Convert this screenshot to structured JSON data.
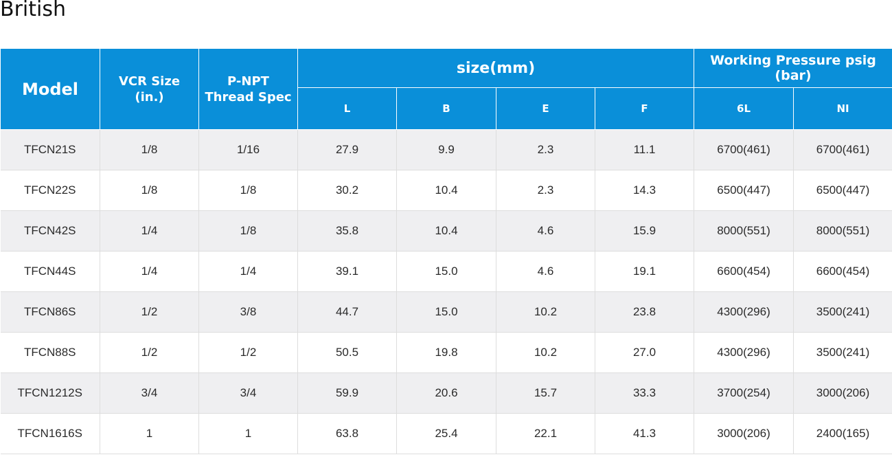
{
  "title": "British",
  "headers": {
    "model": "Model",
    "vcr_size": [
      "VCR Size",
      "(in.)"
    ],
    "thread_spec": [
      "P-NPT",
      "Thread Spec"
    ],
    "size_group": "size(mm)",
    "pressure_group": "Working Pressure psig (bar)",
    "size_cols": [
      "L",
      "B",
      "E",
      "F"
    ],
    "pressure_cols": [
      "6L",
      "NI"
    ]
  },
  "colors": {
    "header_bg": "#0a8fd9",
    "row_alt_bg": "#efeff1"
  },
  "rows": [
    [
      "TFCN21S",
      "1/8",
      "1/16",
      "27.9",
      "9.9",
      "2.3",
      "11.1",
      "6700(461)",
      "6700(461)"
    ],
    [
      "TFCN22S",
      "1/8",
      "1/8",
      "30.2",
      "10.4",
      "2.3",
      "14.3",
      "6500(447)",
      "6500(447)"
    ],
    [
      "TFCN42S",
      "1/4",
      "1/8",
      "35.8",
      "10.4",
      "4.6",
      "15.9",
      "8000(551)",
      "8000(551)"
    ],
    [
      "TFCN44S",
      "1/4",
      "1/4",
      "39.1",
      "15.0",
      "4.6",
      "19.1",
      "6600(454)",
      "6600(454)"
    ],
    [
      "TFCN86S",
      "1/2",
      "3/8",
      "44.7",
      "15.0",
      "10.2",
      "23.8",
      "4300(296)",
      "3500(241)"
    ],
    [
      "TFCN88S",
      "1/2",
      "1/2",
      "50.5",
      "19.8",
      "10.2",
      "27.0",
      "4300(296)",
      "3500(241)"
    ],
    [
      "TFCN1212S",
      "3/4",
      "3/4",
      "59.9",
      "20.6",
      "15.7",
      "33.3",
      "3700(254)",
      "3000(206)"
    ],
    [
      "TFCN1616S",
      "1",
      "1",
      "63.8",
      "25.4",
      "22.1",
      "41.3",
      "3000(206)",
      "2400(165)"
    ]
  ]
}
